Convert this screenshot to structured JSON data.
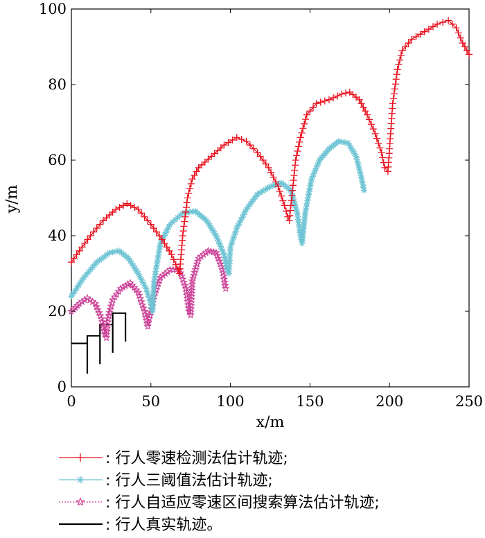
{
  "chart_data": {
    "type": "line",
    "xlabel": "x/m",
    "ylabel": "y/m",
    "xlim": [
      0,
      250
    ],
    "ylim": [
      0,
      100
    ],
    "xticks": [
      0,
      50,
      100,
      150,
      200,
      250
    ],
    "yticks": [
      0,
      20,
      40,
      60,
      80,
      100
    ],
    "grid": false,
    "legend_position": "bottom",
    "series": [
      {
        "name": ": 行人零速检测法估计轨迹;",
        "color": "#e8101e",
        "marker": "plus",
        "line_style": "solid",
        "values": [
          {
            "x": 0,
            "y": 33
          },
          {
            "x": 5,
            "y": 36
          },
          {
            "x": 12,
            "y": 40
          },
          {
            "x": 20,
            "y": 44
          },
          {
            "x": 28,
            "y": 47
          },
          {
            "x": 35,
            "y": 48.5
          },
          {
            "x": 42,
            "y": 47
          },
          {
            "x": 50,
            "y": 43
          },
          {
            "x": 57,
            "y": 39
          },
          {
            "x": 63,
            "y": 35
          },
          {
            "x": 67,
            "y": 31
          },
          {
            "x": 68,
            "y": 30
          },
          {
            "x": 70,
            "y": 40
          },
          {
            "x": 73,
            "y": 50
          },
          {
            "x": 76,
            "y": 55
          },
          {
            "x": 80,
            "y": 58
          },
          {
            "x": 88,
            "y": 61
          },
          {
            "x": 96,
            "y": 64
          },
          {
            "x": 104,
            "y": 66
          },
          {
            "x": 110,
            "y": 65
          },
          {
            "x": 117,
            "y": 62
          },
          {
            "x": 124,
            "y": 58
          },
          {
            "x": 130,
            "y": 53
          },
          {
            "x": 134,
            "y": 48
          },
          {
            "x": 136,
            "y": 45
          },
          {
            "x": 137,
            "y": 44
          },
          {
            "x": 139,
            "y": 52
          },
          {
            "x": 141,
            "y": 60
          },
          {
            "x": 144,
            "y": 66
          },
          {
            "x": 148,
            "y": 72
          },
          {
            "x": 154,
            "y": 75
          },
          {
            "x": 162,
            "y": 76
          },
          {
            "x": 170,
            "y": 77.5
          },
          {
            "x": 175,
            "y": 78
          },
          {
            "x": 181,
            "y": 76
          },
          {
            "x": 186,
            "y": 72
          },
          {
            "x": 191,
            "y": 67
          },
          {
            "x": 195,
            "y": 62
          },
          {
            "x": 197,
            "y": 58
          },
          {
            "x": 199,
            "y": 57
          },
          {
            "x": 200,
            "y": 63
          },
          {
            "x": 202,
            "y": 75
          },
          {
            "x": 205,
            "y": 84
          },
          {
            "x": 208,
            "y": 89
          },
          {
            "x": 214,
            "y": 92
          },
          {
            "x": 222,
            "y": 94
          },
          {
            "x": 230,
            "y": 96
          },
          {
            "x": 237,
            "y": 97
          },
          {
            "x": 242,
            "y": 95
          },
          {
            "x": 246,
            "y": 91
          },
          {
            "x": 250,
            "y": 88
          }
        ]
      },
      {
        "name": ": 行人三阈值法估计轨迹;",
        "color": "#6ec4d4",
        "marker": "asterisk",
        "line_style": "solid",
        "values": [
          {
            "x": 0,
            "y": 24
          },
          {
            "x": 8,
            "y": 29
          },
          {
            "x": 16,
            "y": 33
          },
          {
            "x": 24,
            "y": 35.5
          },
          {
            "x": 30,
            "y": 36
          },
          {
            "x": 36,
            "y": 34
          },
          {
            "x": 42,
            "y": 30
          },
          {
            "x": 47,
            "y": 26
          },
          {
            "x": 50,
            "y": 22
          },
          {
            "x": 51,
            "y": 20
          },
          {
            "x": 52,
            "y": 28
          },
          {
            "x": 56,
            "y": 38
          },
          {
            "x": 62,
            "y": 43
          },
          {
            "x": 70,
            "y": 46
          },
          {
            "x": 78,
            "y": 46.5
          },
          {
            "x": 85,
            "y": 44
          },
          {
            "x": 91,
            "y": 40
          },
          {
            "x": 96,
            "y": 35
          },
          {
            "x": 98,
            "y": 31
          },
          {
            "x": 99,
            "y": 30
          },
          {
            "x": 100,
            "y": 37
          },
          {
            "x": 104,
            "y": 42
          },
          {
            "x": 110,
            "y": 47
          },
          {
            "x": 117,
            "y": 51
          },
          {
            "x": 125,
            "y": 53
          },
          {
            "x": 132,
            "y": 54
          },
          {
            "x": 138,
            "y": 52
          },
          {
            "x": 142,
            "y": 46
          },
          {
            "x": 144,
            "y": 40
          },
          {
            "x": 145,
            "y": 38
          },
          {
            "x": 147,
            "y": 46
          },
          {
            "x": 151,
            "y": 55
          },
          {
            "x": 156,
            "y": 60
          },
          {
            "x": 162,
            "y": 63
          },
          {
            "x": 168,
            "y": 65
          },
          {
            "x": 174,
            "y": 64.5
          },
          {
            "x": 179,
            "y": 61
          },
          {
            "x": 182,
            "y": 56
          },
          {
            "x": 184,
            "y": 52
          }
        ]
      },
      {
        "name": ": 行人自适应零速区间搜索算法估计轨迹;",
        "color": "#cc4499",
        "marker": "star",
        "line_style": "dotted",
        "values": [
          {
            "x": 0,
            "y": 20
          },
          {
            "x": 5,
            "y": 22
          },
          {
            "x": 10,
            "y": 23.5
          },
          {
            "x": 15,
            "y": 22
          },
          {
            "x": 19,
            "y": 18
          },
          {
            "x": 21,
            "y": 14
          },
          {
            "x": 22,
            "y": 13
          },
          {
            "x": 23,
            "y": 18
          },
          {
            "x": 26,
            "y": 23
          },
          {
            "x": 31,
            "y": 26
          },
          {
            "x": 37,
            "y": 27.5
          },
          {
            "x": 42,
            "y": 25
          },
          {
            "x": 46,
            "y": 20
          },
          {
            "x": 48,
            "y": 16
          },
          {
            "x": 49,
            "y": 18
          },
          {
            "x": 52,
            "y": 24
          },
          {
            "x": 56,
            "y": 29
          },
          {
            "x": 62,
            "y": 31
          },
          {
            "x": 68,
            "y": 31
          },
          {
            "x": 72,
            "y": 26
          },
          {
            "x": 74,
            "y": 20
          },
          {
            "x": 75,
            "y": 19
          },
          {
            "x": 76,
            "y": 28
          },
          {
            "x": 80,
            "y": 34
          },
          {
            "x": 86,
            "y": 36
          },
          {
            "x": 91,
            "y": 35.5
          },
          {
            "x": 95,
            "y": 31
          },
          {
            "x": 97,
            "y": 26
          }
        ]
      },
      {
        "name": ": 行人真实轨迹。",
        "color": "#000000",
        "marker": "none",
        "line_style": "solid",
        "values": [
          {
            "x": 0,
            "y": 11.5
          },
          {
            "x": 10,
            "y": 11.5
          },
          {
            "x": 10,
            "y": 3.5
          },
          {
            "x": 10,
            "y": 13.5
          },
          {
            "x": 18,
            "y": 13.5
          },
          {
            "x": 18,
            "y": 6
          },
          {
            "x": 18,
            "y": 16.5
          },
          {
            "x": 26,
            "y": 16.5
          },
          {
            "x": 26,
            "y": 9
          },
          {
            "x": 26,
            "y": 19.5
          },
          {
            "x": 34,
            "y": 19.5
          },
          {
            "x": 34,
            "y": 12
          }
        ]
      }
    ]
  }
}
